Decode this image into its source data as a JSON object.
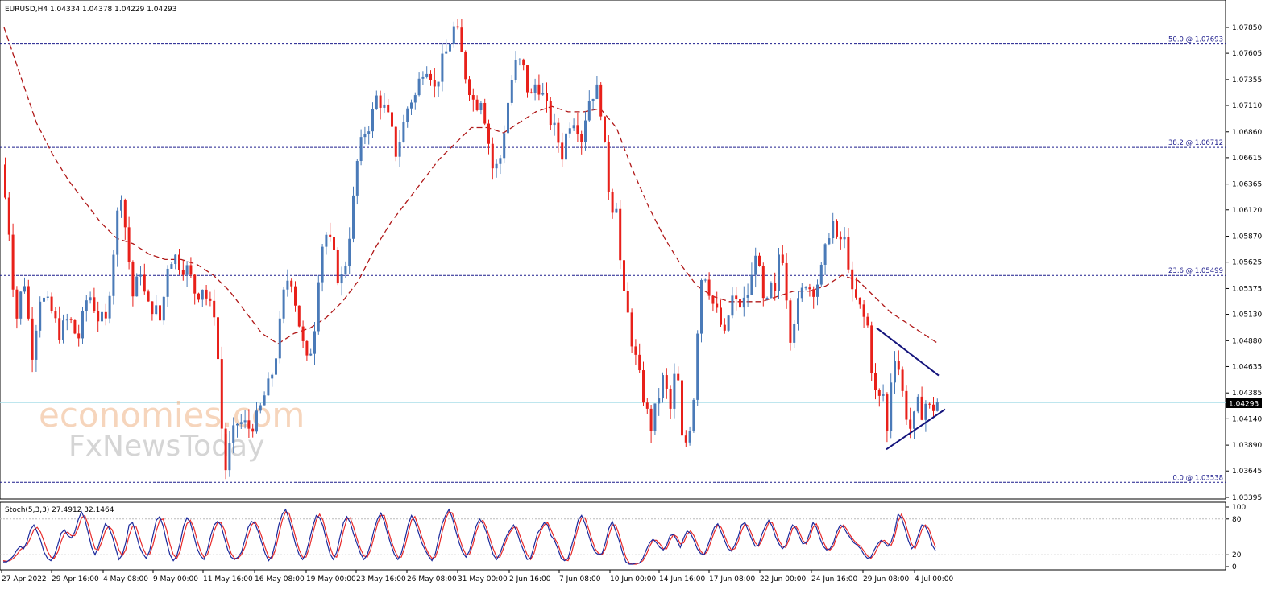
{
  "chart_data": {
    "type": "candlestick",
    "symbol_info": "EURUSD,H4  1.04334 1.04378 1.04229 1.04293",
    "last_price": "1.04293",
    "ylim": [
      1.03395,
      1.0795
    ],
    "y_ticks": [
      "1.07850",
      "1.07605",
      "1.07355",
      "1.07110",
      "1.06860",
      "1.06615",
      "1.06365",
      "1.06120",
      "1.05870",
      "1.05625",
      "1.05375",
      "1.05130",
      "1.04880",
      "1.04635",
      "1.04385",
      "1.04140",
      "1.03890",
      "1.03645",
      "1.03395"
    ],
    "x_tick_labels": [
      "27 Apr 2022",
      "29 Apr 16:00",
      "4 May 08:00",
      "9 May 00:00",
      "11 May 16:00",
      "16 May 08:00",
      "19 May 00:00",
      "23 May 16:00",
      "26 May 08:00",
      "31 May 00:00",
      "2 Jun 16:00",
      "7 Jun 08:00",
      "10 Jun 00:00",
      "14 Jun 16:00",
      "17 Jun 08:00",
      "22 Jun 00:00",
      "24 Jun 16:00",
      "29 Jun 08:00",
      "4 Jul 00:00"
    ],
    "fib_levels": [
      {
        "label": "50.0 @ 1.07693",
        "value": 1.07693
      },
      {
        "label": "38.2 @ 1.06712",
        "value": 1.06712
      },
      {
        "label": "23.6 @ 1.05499",
        "value": 1.05499
      },
      {
        "label": "0.0 @ 1.03538",
        "value": 1.03538
      }
    ],
    "price_path": [
      [
        0,
        1.0655
      ],
      [
        10,
        1.059
      ],
      [
        18,
        1.0505
      ],
      [
        28,
        1.055
      ],
      [
        38,
        1.0475
      ],
      [
        48,
        1.053
      ],
      [
        60,
        1.052
      ],
      [
        72,
        1.0495
      ],
      [
        84,
        1.051
      ],
      [
        95,
        1.0488
      ],
      [
        108,
        1.0535
      ],
      [
        120,
        1.051
      ],
      [
        130,
        1.0505
      ],
      [
        140,
        1.058
      ],
      [
        148,
        1.0635
      ],
      [
        156,
        1.058
      ],
      [
        164,
        1.0525
      ],
      [
        172,
        1.056
      ],
      [
        180,
        1.052
      ],
      [
        190,
        1.052
      ],
      [
        198,
        1.0505
      ],
      [
        206,
        1.056
      ],
      [
        214,
        1.057
      ],
      [
        222,
        1.056
      ],
      [
        232,
        1.0555
      ],
      [
        242,
        1.053
      ],
      [
        250,
        1.054
      ],
      [
        258,
        1.052
      ],
      [
        266,
        1.0515
      ],
      [
        272,
        1.042
      ],
      [
        278,
        1.0365
      ],
      [
        284,
        1.039
      ],
      [
        292,
        1.041
      ],
      [
        300,
        1.041
      ],
      [
        308,
        1.0405
      ],
      [
        318,
        1.0415
      ],
      [
        326,
        1.0435
      ],
      [
        334,
        1.045
      ],
      [
        342,
        1.048
      ],
      [
        350,
        1.053
      ],
      [
        358,
        1.0555
      ],
      [
        366,
        1.052
      ],
      [
        374,
        1.0485
      ],
      [
        380,
        1.0465
      ],
      [
        388,
        1.0495
      ],
      [
        396,
        1.0575
      ],
      [
        404,
        1.059
      ],
      [
        412,
        1.057
      ],
      [
        420,
        1.054
      ],
      [
        428,
        1.0565
      ],
      [
        436,
        1.0615
      ],
      [
        442,
        1.066
      ],
      [
        450,
        1.0685
      ],
      [
        458,
        1.0695
      ],
      [
        466,
        1.072
      ],
      [
        474,
        1.071
      ],
      [
        482,
        1.0695
      ],
      [
        490,
        1.0665
      ],
      [
        498,
        1.069
      ],
      [
        506,
        1.0715
      ],
      [
        514,
        1.072
      ],
      [
        522,
        1.0745
      ],
      [
        530,
        1.075
      ],
      [
        538,
        1.0725
      ],
      [
        546,
        1.075
      ],
      [
        554,
        1.0765
      ],
      [
        562,
        1.0785
      ],
      [
        568,
        1.0775
      ],
      [
        574,
        1.0745
      ],
      [
        580,
        1.073
      ],
      [
        588,
        1.071
      ],
      [
        596,
        1.072
      ],
      [
        604,
        1.068
      ],
      [
        610,
        1.065
      ],
      [
        618,
        1.0655
      ],
      [
        626,
        1.07
      ],
      [
        632,
        1.073
      ],
      [
        640,
        1.0755
      ],
      [
        648,
        1.0745
      ],
      [
        656,
        1.0715
      ],
      [
        664,
        1.0735
      ],
      [
        672,
        1.072
      ],
      [
        680,
        1.07
      ],
      [
        688,
        1.0685
      ],
      [
        696,
        1.0665
      ],
      [
        704,
        1.0695
      ],
      [
        712,
        1.07
      ],
      [
        720,
        1.068
      ],
      [
        728,
        1.0715
      ],
      [
        736,
        1.0725
      ],
      [
        742,
        1.0725
      ],
      [
        748,
        1.0675
      ],
      [
        752,
        1.064
      ],
      [
        758,
        1.0615
      ],
      [
        764,
        1.062
      ],
      [
        770,
        1.0535
      ],
      [
        776,
        1.052
      ],
      [
        782,
        1.049
      ],
      [
        790,
        1.046
      ],
      [
        798,
        1.043
      ],
      [
        806,
        1.0405
      ],
      [
        814,
        1.043
      ],
      [
        822,
        1.0455
      ],
      [
        830,
        1.042
      ],
      [
        838,
        1.047
      ],
      [
        846,
        1.038
      ],
      [
        852,
        1.04
      ],
      [
        858,
        1.042
      ],
      [
        864,
        1.05
      ],
      [
        870,
        1.056
      ],
      [
        876,
        1.0545
      ],
      [
        882,
        1.0525
      ],
      [
        890,
        1.051
      ],
      [
        898,
        1.049
      ],
      [
        906,
        1.053
      ],
      [
        914,
        1.052
      ],
      [
        922,
        1.0525
      ],
      [
        930,
        1.054
      ],
      [
        936,
        1.0575
      ],
      [
        942,
        1.0545
      ],
      [
        948,
        1.051
      ],
      [
        954,
        1.054
      ],
      [
        960,
        1.053
      ],
      [
        966,
        1.058
      ],
      [
        972,
        1.056
      ],
      [
        978,
        1.049
      ],
      [
        984,
        1.051
      ],
      [
        990,
        1.0525
      ],
      [
        998,
        1.0545
      ],
      [
        1006,
        1.0535
      ],
      [
        1014,
        1.0545
      ],
      [
        1020,
        1.056
      ],
      [
        1026,
        1.059
      ],
      [
        1032,
        1.06
      ],
      [
        1038,
        1.0575
      ],
      [
        1044,
        1.059
      ],
      [
        1050,
        1.057
      ],
      [
        1056,
        1.053
      ],
      [
        1062,
        1.0525
      ],
      [
        1070,
        1.051
      ],
      [
        1076,
        1.05
      ],
      [
        1082,
        1.0445
      ],
      [
        1088,
        1.043
      ],
      [
        1094,
        1.044
      ],
      [
        1100,
        1.0395
      ],
      [
        1106,
        1.048
      ],
      [
        1112,
        1.047
      ],
      [
        1118,
        1.044
      ],
      [
        1124,
        1.0415
      ],
      [
        1130,
        1.04
      ],
      [
        1136,
        1.043
      ],
      [
        1142,
        1.042
      ],
      [
        1148,
        1.043
      ],
      [
        1154,
        1.042
      ],
      [
        1160,
        1.043
      ]
    ],
    "moving_average": [
      [
        0,
        1.0785
      ],
      [
        20,
        1.074
      ],
      [
        40,
        1.0695
      ],
      [
        60,
        1.0665
      ],
      [
        80,
        1.064
      ],
      [
        100,
        1.062
      ],
      [
        120,
        1.06
      ],
      [
        140,
        1.0585
      ],
      [
        160,
        1.058
      ],
      [
        180,
        1.057
      ],
      [
        200,
        1.0565
      ],
      [
        220,
        1.0565
      ],
      [
        240,
        1.056
      ],
      [
        260,
        1.055
      ],
      [
        280,
        1.0535
      ],
      [
        300,
        1.0515
      ],
      [
        320,
        1.0495
      ],
      [
        340,
        1.0485
      ],
      [
        360,
        1.0495
      ],
      [
        380,
        1.05
      ],
      [
        400,
        1.051
      ],
      [
        420,
        1.0525
      ],
      [
        440,
        1.0545
      ],
      [
        460,
        1.0575
      ],
      [
        480,
        1.06
      ],
      [
        500,
        1.062
      ],
      [
        520,
        1.064
      ],
      [
        540,
        1.066
      ],
      [
        560,
        1.0675
      ],
      [
        580,
        1.069
      ],
      [
        600,
        1.069
      ],
      [
        620,
        1.0685
      ],
      [
        640,
        1.0695
      ],
      [
        660,
        1.0705
      ],
      [
        680,
        1.071
      ],
      [
        700,
        1.0705
      ],
      [
        720,
        1.0705
      ],
      [
        740,
        1.0708
      ],
      [
        760,
        1.069
      ],
      [
        780,
        1.065
      ],
      [
        800,
        1.0615
      ],
      [
        820,
        1.0585
      ],
      [
        840,
        1.056
      ],
      [
        860,
        1.054
      ],
      [
        880,
        1.053
      ],
      [
        900,
        1.0525
      ],
      [
        920,
        1.0525
      ],
      [
        940,
        1.0525
      ],
      [
        960,
        1.053
      ],
      [
        980,
        1.0535
      ],
      [
        1000,
        1.0535
      ],
      [
        1020,
        1.054
      ],
      [
        1040,
        1.055
      ],
      [
        1060,
        1.0545
      ],
      [
        1080,
        1.053
      ],
      [
        1100,
        1.0515
      ],
      [
        1120,
        1.0505
      ],
      [
        1140,
        1.0495
      ],
      [
        1160,
        1.0485
      ]
    ],
    "triangle": {
      "upper": [
        [
          1088,
          1.05
        ],
        [
          1165,
          1.0455
        ]
      ],
      "lower": [
        [
          1100,
          1.0385
        ],
        [
          1173,
          1.0423
        ]
      ]
    },
    "oscillator": {
      "info": "Stoch(5,3,3) 27.4912 32.1464",
      "y_ticks": [
        "100",
        "80",
        "20",
        "0"
      ],
      "levels": [
        80,
        20
      ],
      "main": [
        8,
        8,
        12,
        18,
        28,
        34,
        30,
        42,
        62,
        70,
        58,
        44,
        24,
        14,
        10,
        18,
        36,
        56,
        62,
        52,
        48,
        58,
        78,
        92,
        80,
        56,
        32,
        20,
        34,
        54,
        72,
        66,
        52,
        32,
        12,
        20,
        40,
        70,
        74,
        56,
        34,
        22,
        14,
        26,
        52,
        78,
        84,
        68,
        42,
        20,
        10,
        18,
        40,
        68,
        82,
        74,
        52,
        30,
        18,
        12,
        28,
        52,
        70,
        76,
        70,
        48,
        28,
        16,
        12,
        16,
        24,
        44,
        66,
        76,
        72,
        58,
        40,
        22,
        10,
        18,
        40,
        70,
        88,
        96,
        80,
        58,
        36,
        20,
        12,
        22,
        44,
        68,
        86,
        82,
        68,
        44,
        22,
        12,
        24,
        50,
        74,
        84,
        74,
        54,
        38,
        22,
        12,
        20,
        38,
        62,
        80,
        90,
        76,
        54,
        36,
        20,
        12,
        22,
        44,
        70,
        86,
        76,
        58,
        40,
        28,
        18,
        10,
        22,
        48,
        72,
        86,
        96,
        82,
        60,
        40,
        24,
        16,
        26,
        46,
        68,
        80,
        72,
        58,
        38,
        20,
        12,
        22,
        38,
        52,
        62,
        70,
        58,
        40,
        26,
        12,
        14,
        34,
        56,
        64,
        74,
        70,
        52,
        44,
        30,
        14,
        10,
        14,
        34,
        54,
        78,
        86,
        72,
        54,
        36,
        24,
        20,
        22,
        40,
        64,
        76,
        60,
        44,
        24,
        8,
        4,
        4,
        6,
        6,
        14,
        28,
        40,
        46,
        40,
        32,
        28,
        36,
        52,
        54,
        44,
        32,
        48,
        60,
        56,
        44,
        30,
        22,
        20,
        34,
        50,
        66,
        72,
        58,
        44,
        30,
        26,
        36,
        50,
        70,
        74,
        60,
        46,
        34,
        36,
        54,
        68,
        78,
        68,
        50,
        38,
        30,
        36,
        56,
        70,
        64,
        50,
        38,
        40,
        56,
        74,
        66,
        48,
        34,
        28,
        30,
        40,
        58,
        70,
        66,
        56,
        48,
        40,
        36,
        30,
        20,
        14,
        16,
        28,
        38,
        44,
        40,
        34,
        42,
        60,
        88,
        82,
        64,
        44,
        30,
        36,
        54,
        70,
        68,
        56,
        36,
        27
      ],
      "signal": [
        10,
        9,
        10,
        14,
        20,
        28,
        32,
        36,
        48,
        62,
        66,
        58,
        42,
        26,
        16,
        14,
        24,
        42,
        56,
        58,
        52,
        52,
        64,
        82,
        86,
        70,
        48,
        30,
        28,
        42,
        60,
        68,
        62,
        46,
        28,
        18,
        28,
        52,
        68,
        68,
        50,
        32,
        20,
        20,
        36,
        60,
        78,
        80,
        62,
        38,
        20,
        14,
        26,
        52,
        72,
        78,
        66,
        44,
        26,
        16,
        20,
        38,
        60,
        74,
        74,
        62,
        40,
        22,
        14,
        14,
        20,
        32,
        52,
        70,
        76,
        66,
        50,
        32,
        16,
        14,
        28,
        54,
        78,
        92,
        90,
        70,
        48,
        28,
        16,
        16,
        32,
        56,
        78,
        88,
        78,
        56,
        34,
        18,
        16,
        34,
        60,
        80,
        82,
        66,
        46,
        30,
        18,
        16,
        28,
        50,
        72,
        86,
        86,
        64,
        44,
        28,
        16,
        16,
        32,
        56,
        78,
        84,
        68,
        50,
        34,
        22,
        14,
        16,
        32,
        58,
        80,
        92,
        90,
        72,
        50,
        32,
        20,
        20,
        36,
        58,
        74,
        78,
        66,
        48,
        30,
        16,
        16,
        30,
        46,
        58,
        66,
        66,
        50,
        34,
        20,
        12,
        22,
        44,
        60,
        70,
        74,
        62,
        48,
        38,
        22,
        12,
        10,
        22,
        44,
        66,
        82,
        82,
        64,
        46,
        30,
        22,
        20,
        30,
        52,
        70,
        70,
        54,
        34,
        16,
        6,
        4,
        4,
        6,
        10,
        20,
        34,
        44,
        44,
        38,
        30,
        30,
        44,
        54,
        50,
        38,
        40,
        54,
        60,
        52,
        38,
        26,
        20,
        26,
        42,
        58,
        70,
        66,
        52,
        38,
        28,
        30,
        42,
        60,
        72,
        68,
        54,
        40,
        34,
        44,
        60,
        74,
        74,
        60,
        44,
        34,
        32,
        46,
        64,
        68,
        58,
        44,
        38,
        48,
        66,
        72,
        58,
        42,
        30,
        28,
        34,
        50,
        64,
        70,
        62,
        52,
        44,
        38,
        34,
        26,
        18,
        14,
        20,
        32,
        42,
        44,
        38,
        36,
        50,
        76,
        88,
        76,
        56,
        38,
        30,
        44,
        62,
        70,
        64,
        48,
        32
      ]
    }
  },
  "watermark": {
    "line1": "economies.com",
    "line2": "FxNewsToday"
  },
  "colors": {
    "bull": "#4a7ab8",
    "bear": "#e8201a",
    "ma": "#b01818",
    "fib": "#1c1c8c",
    "last_line": "#a8dde8",
    "stoch_main": "#1c2a9c",
    "stoch_signal": "#e82a2a",
    "triangle": "#14147c"
  }
}
